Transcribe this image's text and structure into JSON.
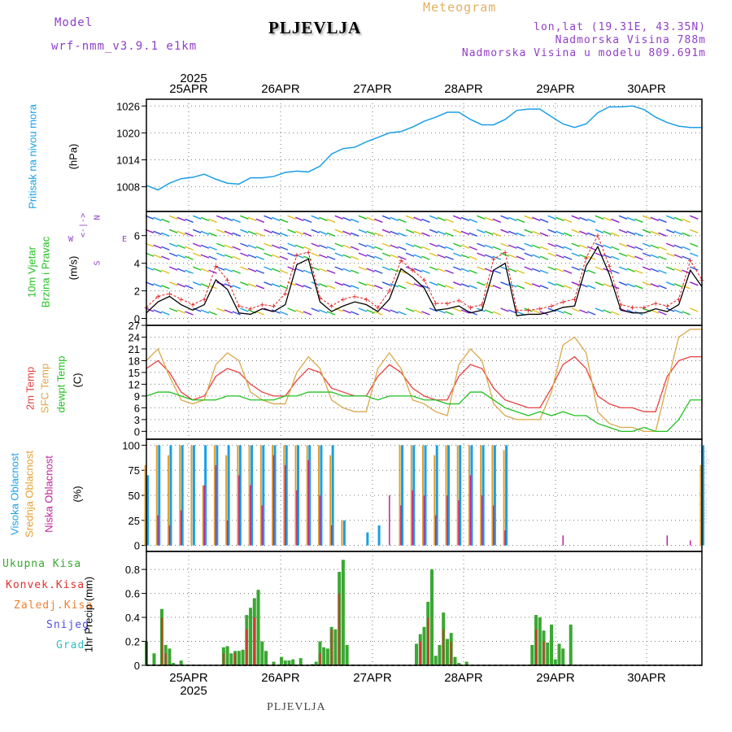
{
  "header": {
    "model_label": "Model",
    "model_name": "wrf-nmm_v3.9.1 e1km",
    "station": "PLJEVLJA",
    "product": "Meteogram",
    "coords": "lon,lat (19.31E, 43.35N)",
    "altitude": "Nadmorska Visina 788m",
    "model_altitude": "Nadmorska Visina u modelu 809.691m"
  },
  "footer_station": "PLJEVLJA",
  "watermark": "made by Angel",
  "time_axis": {
    "year": "2025",
    "days": [
      "25APR",
      "26APR",
      "27APR",
      "28APR",
      "29APR",
      "30APR"
    ]
  },
  "panel_labels": {
    "pressure": [
      "Pritisak na nivou mora",
      "(hPa)"
    ],
    "wind": [
      "10m Vjetar",
      "Brzina i Pravac",
      "(m/s)"
    ],
    "temp": [
      "2m Temp",
      "SFC Temp",
      "dewpt Temp",
      "(C)"
    ],
    "cloud": [
      "Visoka Oblacnost",
      "Srednja Oblacnost",
      "Niska Oblacnost",
      "(%)"
    ],
    "precip": [
      "Ukupna Kisa",
      "Konvek.Kisa",
      "Zaledj.Kisa",
      "Snijeg",
      "Grad",
      "1hr Precip (mm)"
    ]
  },
  "compass": {
    "n": "N",
    "w": "W",
    "e": "E",
    "s": "S"
  },
  "colors": {
    "pressure": "#1a9fe6",
    "wind_speed": "#000000",
    "wind_gust": "#e02020",
    "temp2m": "#e84040",
    "sfc": "#d9a84a",
    "dewpt": "#22c022",
    "cloud_high": "#1a9fe6",
    "cloud_mid": "#e0a030",
    "cloud_low": "#c0209a",
    "precip_total": "#3aa832",
    "precip_conv": "#e03030",
    "precip_frz": "#f08030",
    "precip_snow": "#5050e0",
    "precip_grad": "#30c0c0"
  },
  "chart_data": [
    {
      "type": "line",
      "name": "pressure",
      "ylabel": "(hPa)",
      "yticks": [
        1008,
        1014,
        1020,
        1026
      ],
      "ylim": [
        1002.5,
        1027.5
      ],
      "grid": true,
      "x_hours": [
        0,
        3,
        6,
        9,
        12,
        15,
        18,
        21,
        24,
        27,
        30,
        33,
        36,
        39,
        42,
        45,
        48,
        51,
        54,
        57,
        60,
        63,
        66,
        69,
        72,
        75,
        78,
        81,
        84,
        87,
        90,
        93,
        96,
        99,
        102,
        105,
        108,
        111,
        114,
        117,
        120,
        123,
        126,
        129,
        132,
        135,
        138,
        141,
        144
      ],
      "values": [
        1008.3,
        1007.3,
        1008.8,
        1009.8,
        1010.1,
        1010.8,
        1009.7,
        1008.8,
        1008.6,
        1010.0,
        1010.0,
        1010.3,
        1011.2,
        1011.5,
        1011.3,
        1012.6,
        1015.3,
        1016.5,
        1016.8,
        1018.0,
        1019.0,
        1020.0,
        1020.3,
        1021.3,
        1022.6,
        1023.5,
        1024.6,
        1024.6,
        1023.0,
        1021.8,
        1021.8,
        1023.0,
        1025.0,
        1025.3,
        1025.3,
        1023.6,
        1022.0,
        1021.2,
        1022.0,
        1024.5,
        1025.8,
        1025.8,
        1026.0,
        1025.2,
        1023.5,
        1022.3,
        1021.5,
        1021.2,
        1021.2
      ]
    },
    {
      "type": "line",
      "name": "wind",
      "ylabel": "(m/s)",
      "yticks": [
        0,
        2,
        4,
        6
      ],
      "ylim": [
        -0.5,
        7.75
      ],
      "grid": true,
      "x_hours": [
        0,
        3,
        6,
        9,
        12,
        15,
        18,
        21,
        24,
        27,
        30,
        33,
        36,
        39,
        42,
        45,
        48,
        51,
        54,
        57,
        60,
        63,
        66,
        69,
        72,
        75,
        78,
        81,
        84,
        87,
        90,
        93,
        96,
        99,
        102,
        105,
        108,
        111,
        114,
        117,
        120,
        123,
        126,
        129,
        132,
        135,
        138,
        141,
        144
      ],
      "series": [
        {
          "name": "speed",
          "values": [
            0.4,
            1.2,
            1.6,
            1.0,
            0.6,
            1.0,
            2.8,
            2.1,
            0.4,
            0.3,
            0.7,
            0.5,
            1.0,
            3.9,
            4.3,
            1.2,
            0.5,
            0.9,
            1.2,
            1.0,
            0.5,
            1.4,
            3.6,
            3.0,
            2.2,
            0.6,
            0.7,
            0.9,
            0.4,
            0.6,
            3.5,
            4.0,
            0.2,
            0.3,
            0.3,
            0.5,
            0.8,
            0.9,
            3.8,
            5.2,
            3.2,
            0.6,
            0.4,
            0.4,
            0.7,
            0.5,
            1.0,
            3.5,
            2.3
          ]
        },
        {
          "name": "gust",
          "values": [
            0.8,
            1.6,
            1.8,
            1.4,
            1.0,
            1.4,
            3.8,
            2.8,
            0.9,
            0.7,
            1.0,
            0.9,
            1.8,
            4.6,
            4.8,
            1.5,
            0.9,
            1.4,
            1.6,
            1.4,
            0.8,
            2.0,
            4.2,
            3.5,
            2.8,
            1.1,
            1.1,
            1.3,
            0.8,
            1.0,
            4.3,
            4.8,
            0.6,
            0.6,
            0.7,
            0.9,
            1.2,
            1.4,
            4.4,
            6.0,
            3.8,
            1.0,
            0.8,
            0.8,
            1.1,
            0.9,
            1.4,
            4.2,
            2.8
          ]
        }
      ]
    },
    {
      "type": "line",
      "name": "temperature",
      "ylabel": "(C)",
      "yticks": [
        0,
        3,
        6,
        9,
        12,
        15,
        18,
        21,
        24,
        27
      ],
      "ylim": [
        -2,
        27
      ],
      "grid": true,
      "x_hours": [
        0,
        3,
        6,
        9,
        12,
        15,
        18,
        21,
        24,
        27,
        30,
        33,
        36,
        39,
        42,
        45,
        48,
        51,
        54,
        57,
        60,
        63,
        66,
        69,
        72,
        75,
        78,
        81,
        84,
        87,
        90,
        93,
        96,
        99,
        102,
        105,
        108,
        111,
        114,
        117,
        120,
        123,
        126,
        129,
        132,
        135,
        138,
        141,
        144
      ],
      "series": [
        {
          "name": "2m Temp",
          "values": [
            16,
            18,
            15,
            10,
            8,
            9,
            14,
            16,
            15,
            12,
            10,
            9,
            9,
            13,
            16,
            15,
            11,
            10,
            9,
            9,
            14,
            17,
            15,
            11,
            9,
            8,
            8,
            14,
            17,
            16,
            11,
            8,
            7,
            6,
            6,
            11,
            17,
            19,
            16,
            9,
            7,
            6,
            6,
            5,
            5,
            14,
            18,
            19,
            19
          ]
        },
        {
          "name": "SFC Temp",
          "values": [
            18,
            21,
            14,
            8,
            7,
            8,
            17,
            20,
            18,
            10,
            8,
            7,
            7,
            15,
            19,
            16,
            8,
            6,
            5,
            5,
            16,
            20,
            16,
            8,
            7,
            5,
            4,
            17,
            21,
            18,
            7,
            4,
            3,
            3,
            3,
            10,
            22,
            24,
            20,
            5,
            2,
            1,
            1,
            0,
            0,
            12,
            24,
            26,
            26
          ]
        },
        {
          "name": "dewpt Temp",
          "values": [
            9,
            10,
            10,
            9,
            8,
            8,
            8,
            9,
            9,
            8,
            8,
            8,
            9,
            9,
            10,
            10,
            10,
            9,
            9,
            9,
            8,
            9,
            9,
            9,
            8,
            8,
            7,
            7,
            10,
            10,
            8,
            6,
            5,
            4,
            5,
            4,
            5,
            4,
            4,
            2,
            1,
            0,
            0,
            1,
            0,
            0,
            3,
            8,
            8
          ]
        }
      ]
    },
    {
      "type": "bar",
      "name": "cloud cover",
      "ylabel": "(%)",
      "yticks": [
        0,
        25,
        50,
        75,
        100
      ],
      "ylim": [
        -6,
        106
      ],
      "grid": true,
      "x_hours": [
        0,
        3,
        6,
        9,
        12,
        15,
        18,
        21,
        24,
        27,
        30,
        33,
        36,
        39,
        42,
        45,
        48,
        51,
        54,
        57,
        60,
        63,
        66,
        69,
        72,
        75,
        78,
        81,
        84,
        87,
        90,
        93,
        96,
        99,
        102,
        105,
        108,
        111,
        114,
        117,
        120,
        123,
        126,
        129,
        132,
        135,
        138,
        141,
        144
      ],
      "series": [
        {
          "name": "Visoka Oblacnost",
          "values": [
            70,
            100,
            100,
            100,
            100,
            100,
            100,
            100,
            100,
            100,
            100,
            100,
            100,
            100,
            100,
            100,
            100,
            25,
            0,
            13,
            20,
            0,
            100,
            100,
            100,
            100,
            100,
            100,
            100,
            100,
            100,
            100,
            0,
            0,
            0,
            0,
            0,
            0,
            0,
            0,
            0,
            0,
            0,
            0,
            0,
            0,
            0,
            0,
            100
          ]
        },
        {
          "name": "Srednja Oblacnost",
          "values": [
            80,
            100,
            90,
            100,
            100,
            60,
            100,
            90,
            100,
            100,
            100,
            100,
            100,
            100,
            100,
            100,
            90,
            25,
            0,
            0,
            0,
            0,
            100,
            100,
            100,
            90,
            100,
            100,
            100,
            100,
            100,
            95,
            0,
            0,
            0,
            0,
            0,
            0,
            0,
            0,
            0,
            0,
            0,
            0,
            0,
            0,
            0,
            0,
            80
          ]
        },
        {
          "name": "Niska Oblacnost",
          "values": [
            0,
            30,
            20,
            35,
            0,
            60,
            80,
            25,
            70,
            60,
            40,
            90,
            80,
            55,
            85,
            50,
            20,
            0,
            0,
            0,
            0,
            50,
            40,
            55,
            50,
            30,
            50,
            45,
            70,
            50,
            40,
            15,
            0,
            0,
            0,
            0,
            10,
            0,
            0,
            0,
            0,
            0,
            0,
            0,
            0,
            10,
            0,
            5,
            0
          ]
        }
      ]
    },
    {
      "type": "bar",
      "name": "precipitation",
      "ylabel": "1hr Precip (mm)",
      "yticks": [
        0,
        0.2,
        0.4,
        0.6,
        0.8
      ],
      "ylim": [
        0,
        0.95
      ],
      "grid": true,
      "x_hours": [
        0,
        2,
        4,
        5,
        6,
        7,
        9,
        20,
        21,
        22,
        23,
        24,
        25,
        26,
        27,
        28,
        29,
        30,
        31,
        33,
        35,
        36,
        37,
        38,
        40,
        43,
        44,
        45,
        46,
        47,
        48,
        49,
        50,
        51,
        52,
        70,
        71,
        72,
        73,
        74,
        75,
        76,
        77,
        78,
        79,
        80,
        81,
        83,
        100,
        101,
        102,
        103,
        104,
        105,
        106,
        107,
        108,
        110
      ],
      "series": [
        {
          "name": "Ukupna Kisa",
          "values": [
            0.2,
            0.1,
            0.47,
            0.17,
            0.14,
            0.02,
            0.04,
            0.15,
            0.16,
            0.1,
            0.12,
            0.12,
            0.13,
            0.42,
            0.48,
            0.56,
            0.63,
            0.2,
            0.12,
            0.03,
            0.07,
            0.04,
            0.04,
            0.05,
            0.06,
            0.01,
            0.03,
            0.2,
            0.15,
            0.14,
            0.32,
            0.3,
            0.78,
            0.88,
            0.17,
            0.18,
            0.26,
            0.32,
            0.53,
            0.8,
            0.08,
            0.17,
            0.44,
            0.22,
            0.27,
            0.07,
            0.02,
            0.03,
            0.17,
            0.42,
            0.4,
            0.29,
            0.19,
            0.34,
            0.05,
            0.18,
            0.14,
            0.34
          ]
        },
        {
          "name": "Konvek.Kisa",
          "values": [
            0,
            0,
            0.4,
            0.1,
            0,
            0,
            0,
            0.1,
            0,
            0,
            0.1,
            0,
            0,
            0.3,
            0,
            0.4,
            0,
            0,
            0,
            0,
            0,
            0,
            0,
            0,
            0,
            0,
            0,
            0.1,
            0,
            0,
            0.3,
            0,
            0.6,
            0,
            0,
            0,
            0.2,
            0,
            0.4,
            0,
            0,
            0,
            0.3,
            0,
            0.2,
            0,
            0,
            0,
            0,
            0.3,
            0,
            0.2,
            0,
            0,
            0,
            0,
            0,
            0
          ]
        }
      ]
    }
  ]
}
